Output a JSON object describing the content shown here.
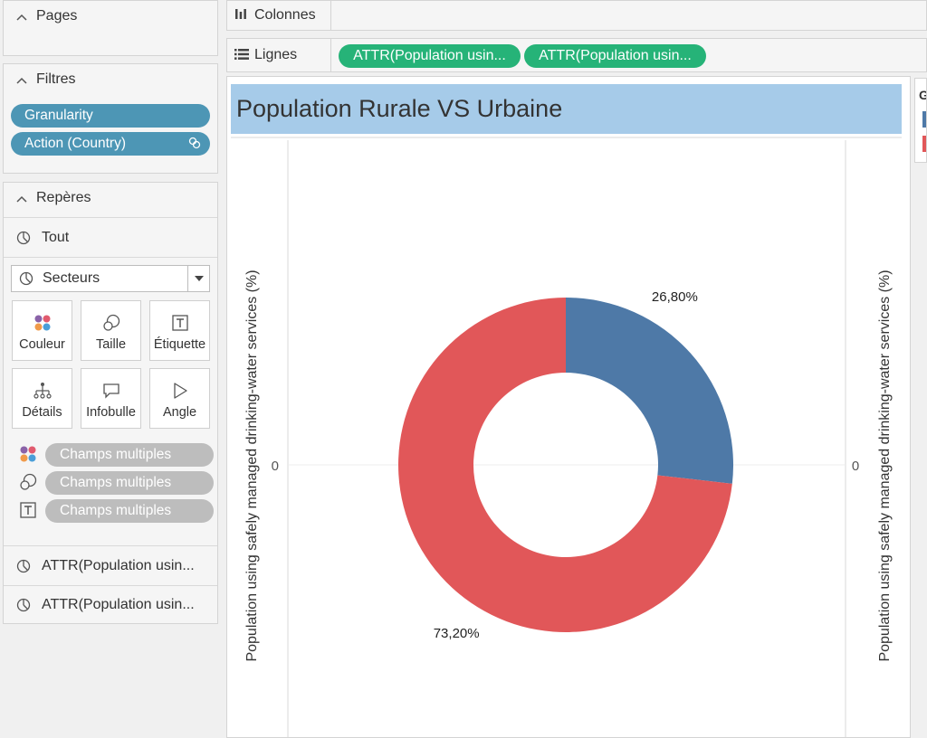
{
  "sidebar": {
    "pages": {
      "title": "Pages"
    },
    "filters": {
      "title": "Filtres",
      "items": [
        {
          "label": "Granularity"
        },
        {
          "label": "Action (Country)"
        }
      ]
    },
    "marks": {
      "title": "Repères",
      "all_label": "Tout",
      "mark_type": "Secteurs",
      "buttons": [
        {
          "label": "Couleur",
          "icon": "color-dots-icon"
        },
        {
          "label": "Taille",
          "icon": "size-circles-icon"
        },
        {
          "label": "Étiquette",
          "icon": "label-text-icon"
        },
        {
          "label": "Détails",
          "icon": "detail-tree-icon"
        },
        {
          "label": "Infobulle",
          "icon": "tooltip-bubble-icon"
        },
        {
          "label": "Angle",
          "icon": "angle-icon"
        }
      ],
      "fields": [
        {
          "label": "Champs multiples",
          "icon": "color-dots-icon"
        },
        {
          "label": "Champs multiples",
          "icon": "size-circles-icon"
        },
        {
          "label": "Champs multiples",
          "icon": "label-text-icon"
        }
      ],
      "measures": [
        {
          "label": "ATTR(Population usin..."
        },
        {
          "label": "ATTR(Population usin..."
        }
      ]
    }
  },
  "shelves": {
    "columns": {
      "label": "Colonnes"
    },
    "rows": {
      "label": "Lignes",
      "pills": [
        {
          "label": "ATTR(Population usin..."
        },
        {
          "label": "ATTR(Population usin..."
        }
      ]
    }
  },
  "viz": {
    "title": "Population Rurale VS Urbaine",
    "left_axis_label": "Population using safely managed drinking-water services (%)",
    "right_axis_label": "Population using safely managed drinking-water services (%)",
    "left_axis_zero": "0",
    "right_axis_zero": "0",
    "legend_letter": "G"
  },
  "colors": {
    "filter_pill": "#4d96b5",
    "row_pill": "#26b378",
    "title_bg": "#a6cbe9",
    "slice_blue": "#4e79a7",
    "slice_red": "#e15759"
  },
  "chart_data": {
    "type": "pie",
    "variant": "donut",
    "slices": [
      {
        "value": 26.8,
        "label": "26,80%",
        "color": "#4e79a7"
      },
      {
        "value": 73.2,
        "label": "73,20%",
        "color": "#e15759"
      }
    ]
  }
}
